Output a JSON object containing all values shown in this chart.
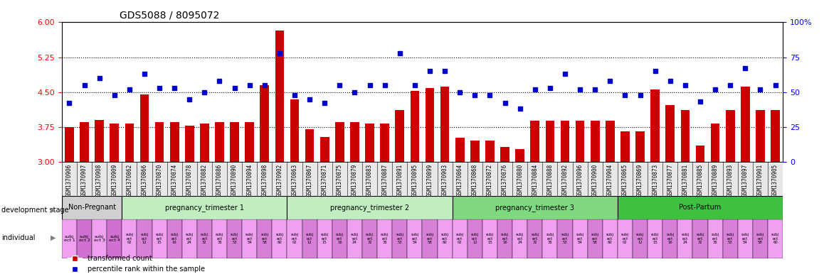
{
  "title": "GDS5088 / 8095072",
  "samples": [
    "GSM1370906",
    "GSM1370907",
    "GSM1370908",
    "GSM1370909",
    "GSM1370862",
    "GSM1370866",
    "GSM1370870",
    "GSM1370874",
    "GSM1370878",
    "GSM1370882",
    "GSM1370886",
    "GSM1370890",
    "GSM1370894",
    "GSM1370898",
    "GSM1370902",
    "GSM1370863",
    "GSM1370867",
    "GSM1370871",
    "GSM1370875",
    "GSM1370879",
    "GSM1370883",
    "GSM1370887",
    "GSM1370891",
    "GSM1370895",
    "GSM1370899",
    "GSM1370903",
    "GSM1370864",
    "GSM1370868",
    "GSM1370872",
    "GSM1370876",
    "GSM1370880",
    "GSM1370884",
    "GSM1370888",
    "GSM1370892",
    "GSM1370896",
    "GSM1370900",
    "GSM1370904",
    "GSM1370865",
    "GSM1370869",
    "GSM1370873",
    "GSM1370877",
    "GSM1370881",
    "GSM1370885",
    "GSM1370889",
    "GSM1370893",
    "GSM1370897",
    "GSM1370901",
    "GSM1370905"
  ],
  "bar_values": [
    3.75,
    3.85,
    3.9,
    3.82,
    3.82,
    4.45,
    3.85,
    3.85,
    3.78,
    3.82,
    3.85,
    3.85,
    3.85,
    4.65,
    5.82,
    4.35,
    3.7,
    3.53,
    3.85,
    3.85,
    3.82,
    3.82,
    4.12,
    4.52,
    4.58,
    4.62,
    3.52,
    3.45,
    3.45,
    3.32,
    3.27,
    3.88,
    3.88,
    3.88,
    3.88,
    3.88,
    3.88,
    3.65,
    3.65,
    4.55,
    4.22,
    4.12,
    3.35,
    3.82,
    4.12,
    4.62,
    4.12,
    4.12
  ],
  "blue_values": [
    42,
    55,
    60,
    48,
    52,
    63,
    53,
    53,
    45,
    50,
    58,
    53,
    55,
    55,
    78,
    48,
    45,
    42,
    55,
    50,
    55,
    55,
    78,
    55,
    65,
    65,
    50,
    48,
    48,
    42,
    38,
    52,
    53,
    63,
    52,
    52,
    58,
    48,
    48,
    65,
    58,
    55,
    43,
    52,
    55,
    67,
    52,
    55
  ],
  "stages": [
    {
      "name": "Non-Pregnant",
      "start": 0,
      "end": 4
    },
    {
      "name": "pregnancy_trimester 1",
      "start": 4,
      "end": 15
    },
    {
      "name": "pregnancy_trimester 2",
      "start": 15,
      "end": 26
    },
    {
      "name": "pregnancy_trimester 3",
      "start": 26,
      "end": 37
    },
    {
      "name": "Post-Partum",
      "start": 37,
      "end": 48
    }
  ],
  "stage_colors": {
    "Non-Pregnant": "#d0d0d0",
    "pregnancy_trimester 1": "#c0eec0",
    "pregnancy_trimester 2": "#c0eec0",
    "pregnancy_trimester 3": "#80d880",
    "Post-Partum": "#40c040"
  },
  "np_labels": [
    "subj\nect 1",
    "subj\nect 2",
    "subj\nect 3",
    "subj\nect 4"
  ],
  "np_colors": [
    "#f0a0f0",
    "#d070d0",
    "#f0a0f0",
    "#d070d0"
  ],
  "repeat_labels": [
    "subj\nect\n02",
    "subj\nect\n12",
    "subj\nect\n15",
    "subj\nect\n16",
    "subj\nect\n24",
    "subj\nect\n32",
    "subj\nect\n36",
    "subj\nect\n53",
    "subj\nect\n54",
    "subj\nect\n58",
    "subj\nect\n60"
  ],
  "ind_colors": [
    "#f0a0f0",
    "#d880d8"
  ],
  "ylim_left": [
    3.0,
    6.0
  ],
  "yticks_left": [
    3.0,
    3.75,
    4.5,
    5.25,
    6.0
  ],
  "ylim_right": [
    0,
    100
  ],
  "yticks_right": [
    0,
    25,
    50,
    75,
    100
  ],
  "bar_color": "#cc0000",
  "blue_color": "#0000cc",
  "bar_bottom": 3.0,
  "hlines": [
    3.75,
    4.5,
    5.25
  ]
}
